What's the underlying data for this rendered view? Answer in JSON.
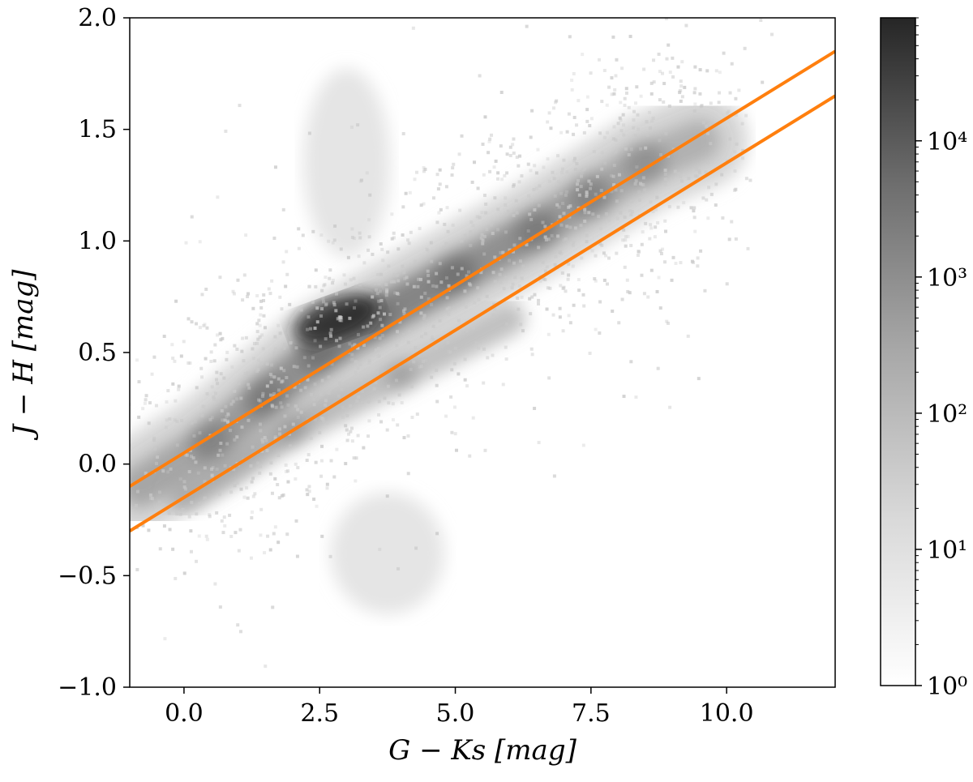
{
  "chart_data": {
    "type": "heatmap",
    "subtype": "2d-density-histogram",
    "title": "",
    "xlabel": "G − Ks [mag]",
    "ylabel": "J − H [mag]",
    "xlim": [
      -1.0,
      12.0
    ],
    "ylim": [
      -1.0,
      2.0
    ],
    "x_ticks": [
      0.0,
      2.5,
      5.0,
      7.5,
      10.0
    ],
    "x_tick_labels": [
      "0.0",
      "2.5",
      "5.0",
      "7.5",
      "10.0"
    ],
    "y_ticks": [
      -1.0,
      -0.5,
      0.0,
      0.5,
      1.0,
      1.5,
      2.0
    ],
    "y_tick_labels": [
      "−1.0",
      "−0.5",
      "0.0",
      "0.5",
      "1.0",
      "1.5",
      "2.0"
    ],
    "grid": false,
    "colorbar": {
      "scale": "log",
      "colormap": "gray_r",
      "range": [
        1,
        80000
      ],
      "ticks": [
        1,
        10,
        100,
        1000,
        10000
      ],
      "tick_labels": [
        "10⁰",
        "10¹",
        "10²",
        "10³",
        "10⁴"
      ]
    },
    "density_features": [
      {
        "name": "main-sequence-ridge",
        "x": [
          -0.8,
          0.5,
          1.5,
          2.5,
          3.5,
          5.0,
          6.5,
          7.5,
          8.5,
          9.5
        ],
        "y": [
          -0.1,
          0.1,
          0.3,
          0.5,
          0.65,
          0.85,
          1.05,
          1.2,
          1.35,
          1.45
        ]
      },
      {
        "name": "dense-core",
        "x": 2.8,
        "y": 0.65
      },
      {
        "name": "lower-branch",
        "x": [
          0.0,
          2.0,
          4.0,
          6.0
        ],
        "y": [
          -0.15,
          0.15,
          0.4,
          0.65
        ]
      },
      {
        "name": "upper-plume",
        "x": [
          2.5,
          3.5
        ],
        "y": [
          1.0,
          1.7
        ]
      },
      {
        "name": "lower-plume",
        "x": [
          3.0,
          4.5
        ],
        "y": [
          -0.2,
          -0.6
        ]
      }
    ],
    "series": [
      {
        "type": "line",
        "color": "#ff7f0e",
        "x": [
          -1.0,
          12.0
        ],
        "y": [
          -0.1,
          1.85
        ]
      },
      {
        "type": "line",
        "color": "#ff7f0e",
        "x": [
          -1.0,
          12.0
        ],
        "y": [
          -0.3,
          1.65
        ]
      }
    ]
  }
}
